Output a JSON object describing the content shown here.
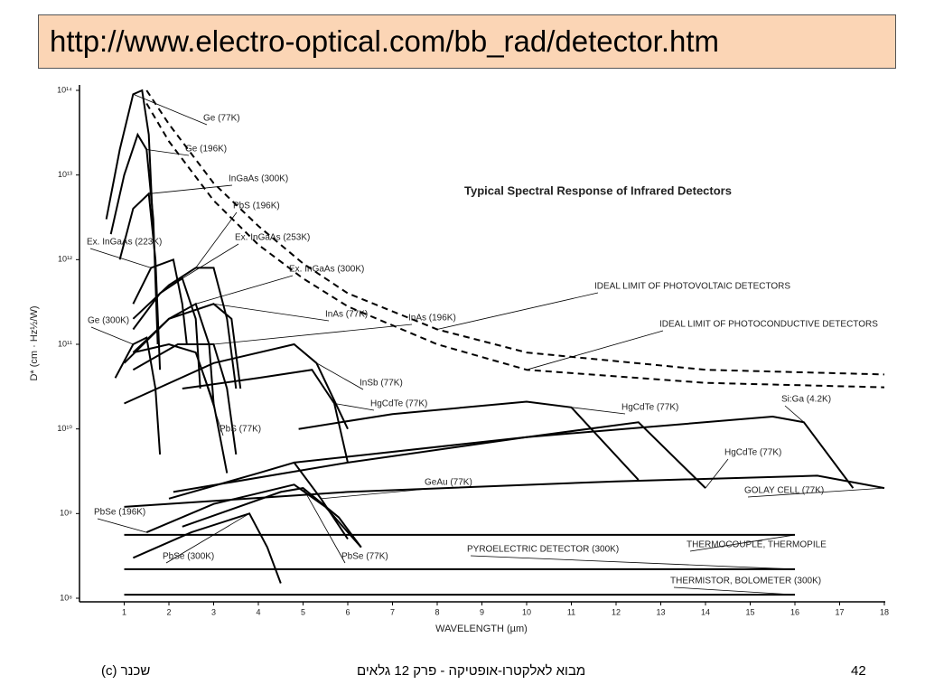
{
  "header": {
    "url": "http://www.electro-optical.com/bb_rad/detector.htm"
  },
  "chart_data": {
    "type": "line",
    "title": "Typical Spectral Response of Infrared Detectors",
    "x_label": "WAVELENGTH (µm)",
    "y_label": "D* (cm · Hz½/W)",
    "xlim": [
      0,
      18
    ],
    "ylim": [
      100000000,
      100000000000000
    ],
    "log_y": true,
    "xticks": [
      1,
      2,
      3,
      4,
      5,
      6,
      7,
      8,
      9,
      10,
      11,
      12,
      13,
      14,
      15,
      16,
      17,
      18
    ],
    "yticks": [
      {
        "value": 100000000,
        "label": "10⁸"
      },
      {
        "value": 1000000000,
        "label": "10⁹"
      },
      {
        "value": 10000000000,
        "label": "10¹⁰"
      },
      {
        "value": 100000000000,
        "label": "10¹¹"
      },
      {
        "value": 1000000000000,
        "label": "10¹²"
      },
      {
        "value": 10000000000000,
        "label": "10¹³"
      },
      {
        "value": 100000000000000,
        "label": "10¹⁴"
      }
    ],
    "series": [
      {
        "name": "Ge (77K)",
        "color": "#000",
        "x": [
          0.6,
          0.9,
          1.2,
          1.4,
          1.55,
          1.65
        ],
        "values": [
          3000000000000.0,
          20000000000000.0,
          90000000000000.0,
          100000000000000.0,
          30000000000000.0,
          2000000000000.0
        ]
      },
      {
        "name": "Ge (196K)",
        "color": "#000",
        "x": [
          0.7,
          1.0,
          1.3,
          1.5,
          1.65,
          1.75
        ],
        "values": [
          2000000000000.0,
          10000000000000.0,
          30000000000000.0,
          20000000000000.0,
          3000000000000.0,
          100000000000.0
        ]
      },
      {
        "name": "InGaAs (300K)",
        "color": "#000",
        "x": [
          0.9,
          1.2,
          1.55,
          1.7,
          1.8
        ],
        "values": [
          1000000000000.0,
          4000000000000.0,
          6000000000000.0,
          1000000000000.0,
          50000000000.0
        ]
      },
      {
        "name": "PbS (196K)",
        "color": "#000",
        "x": [
          1.2,
          2.0,
          2.6,
          3.0,
          3.3,
          3.5
        ],
        "values": [
          200000000000.0,
          500000000000.0,
          800000000000.0,
          800000000000.0,
          200000000000.0,
          30000000000.0
        ]
      },
      {
        "name": "Ex. InGaAs (223K)",
        "color": "#000",
        "x": [
          1.2,
          1.6,
          2.1,
          2.3,
          2.4
        ],
        "values": [
          300000000000.0,
          800000000000.0,
          1000000000000.0,
          300000000000.0,
          100000000000.0
        ]
      },
      {
        "name": "Ex. InGaAs (253K)",
        "color": "#000",
        "x": [
          1.2,
          1.8,
          2.3,
          2.6,
          2.7
        ],
        "values": [
          150000000000.0,
          400000000000.0,
          600000000000.0,
          200000000000.0,
          30000000000.0
        ]
      },
      {
        "name": "Ex. InGaAs (300K)",
        "color": "#000",
        "x": [
          1.2,
          2.0,
          2.6,
          2.9,
          3.0
        ],
        "values": [
          80000000000.0,
          200000000000.0,
          300000000000.0,
          100000000000.0,
          20000000000.0
        ]
      },
      {
        "name": "Ge (300K)",
        "color": "#000",
        "x": [
          0.8,
          1.2,
          1.5,
          1.7,
          1.8
        ],
        "values": [
          40000000000.0,
          100000000000.0,
          120000000000.0,
          30000000000.0,
          5000000000.0
        ]
      },
      {
        "name": "InAs (77K)",
        "color": "#000",
        "x": [
          1.0,
          2.0,
          3.0,
          3.4,
          3.6
        ],
        "values": [
          60000000000.0,
          200000000000.0,
          300000000000.0,
          200000000000.0,
          30000000000.0
        ]
      },
      {
        "name": "InAs (196K)",
        "color": "#000",
        "x": [
          1.2,
          2.2,
          3.0,
          3.3,
          3.5
        ],
        "values": [
          50000000000.0,
          100000000000.0,
          100000000000.0,
          30000000000.0,
          5000000000.0
        ]
      },
      {
        "name": "InSb (77K)",
        "color": "#000",
        "x": [
          1.0,
          3.0,
          4.8,
          5.3,
          6.0
        ],
        "values": [
          20000000000.0,
          60000000000.0,
          100000000000.0,
          60000000000.0,
          10000000000.0
        ]
      },
      {
        "name": "HgCdTe (77K)",
        "color": "#000",
        "x": [
          2.3,
          4.0,
          5.2,
          5.7,
          6.0
        ],
        "values": [
          30000000000.0,
          40000000000.0,
          50000000000.0,
          20000000000.0,
          4000000000.0
        ]
      },
      {
        "name": "PbS (77K)",
        "color": "#000",
        "x": [
          1.2,
          2.0,
          2.6,
          3.0,
          3.3
        ],
        "values": [
          80000000000.0,
          100000000000.0,
          80000000000.0,
          20000000000.0,
          3000000000.0
        ]
      },
      {
        "name": "HgCdTe (77K)",
        "color": "#000",
        "x": [
          4.9,
          7,
          10,
          11,
          12.5
        ],
        "values": [
          10000000000.0,
          15000000000.0,
          21000000000.0,
          18000000000.0,
          2500000000.0
        ]
      },
      {
        "name": "Si:Ga (4.2K)",
        "color": "#000",
        "x": [
          4.8,
          10,
          15.5,
          16.2,
          17.3
        ],
        "values": [
          4000000000.0,
          8000000000.0,
          14000000000.0,
          12000000000.0,
          2000000000.0
        ]
      },
      {
        "name": "HgCdTe (77K)",
        "color": "#000",
        "x": [
          2.1,
          6,
          10,
          12.5,
          14
        ],
        "values": [
          1800000000.0,
          4000000000.0,
          8000000000.0,
          12000000000.0,
          2000000000.0
        ]
      },
      {
        "name": "GeAu (77K)",
        "color": "#000",
        "x": [
          2.0,
          4.0,
          4.8,
          5.4,
          6.0
        ],
        "values": [
          1500000000.0,
          3000000000.0,
          4000000000.0,
          1500000000.0,
          500000000.0
        ]
      },
      {
        "name": "GOLAY CELL (77K)",
        "color": "#000",
        "x": [
          1,
          6,
          12,
          16.5,
          18
        ],
        "values": [
          1200000000.0,
          1800000000.0,
          2400000000.0,
          2800000000.0,
          2000000000.0
        ]
      },
      {
        "name": "PbSe (196K)",
        "color": "#000",
        "x": [
          1.5,
          3,
          4.8,
          5.5,
          6.3
        ],
        "values": [
          600000000.0,
          1300000000.0,
          2200000000.0,
          1200000000.0,
          400000000.0
        ]
      },
      {
        "name": "PbSe (300K)",
        "color": "#000",
        "x": [
          1.2,
          2.5,
          3.8,
          4.2,
          4.5
        ],
        "values": [
          300000000.0,
          600000000.0,
          1000000000.0,
          400000000.0,
          150000000.0
        ]
      },
      {
        "name": "PbSe (77K)",
        "color": "#000",
        "x": [
          2.3,
          4.5,
          5.0,
          5.8,
          6.3
        ],
        "values": [
          700000000.0,
          1800000000.0,
          2000000000.0,
          900000000.0,
          400000000.0
        ]
      },
      {
        "name": "PYROELECTRIC DETECTOR (300K)",
        "color": "#000",
        "x": [
          1,
          16
        ],
        "values": [
          220000000.0,
          220000000.0
        ]
      },
      {
        "name": "THERMOCOUPLE, THERMOPILE",
        "color": "#000",
        "x": [
          1,
          16
        ],
        "values": [
          560000000.0,
          560000000.0
        ]
      },
      {
        "name": "THERMISTOR, BOLOMETER (300K)",
        "color": "#000",
        "x": [
          1,
          16
        ],
        "values": [
          110000000.0,
          110000000.0
        ]
      },
      {
        "name": "IDEAL LIMIT OF PHOTOVOLTAIC DETECTORS",
        "color": "#000",
        "dashed": true,
        "x": [
          1.5,
          2,
          3,
          4,
          5,
          6,
          8,
          10,
          14,
          18
        ],
        "values": [
          100000000000000.0,
          40000000000000.0,
          8000000000000.0,
          2500000000000.0,
          900000000000.0,
          400000000000.0,
          150000000000.0,
          80000000000.0,
          50000000000.0,
          44000000000.0
        ]
      },
      {
        "name": "IDEAL LIMIT OF PHOTOCONDUCTIVE DETECTORS",
        "color": "#000",
        "dashed": true,
        "x": [
          1.5,
          2,
          3,
          4,
          5,
          6,
          8,
          10,
          14,
          18
        ],
        "values": [
          70000000000000.0,
          25000000000000.0,
          5000000000000.0,
          1500000000000.0,
          600000000000.0,
          280000000000.0,
          100000000000.0,
          50000000000.0,
          35000000000.0,
          31000000000.0
        ]
      }
    ]
  },
  "footer": {
    "left": "שכנר  (c)",
    "center": "מבוא לאלקטרו-אופטיקה - פרק 12 גלאים",
    "page": "42"
  }
}
